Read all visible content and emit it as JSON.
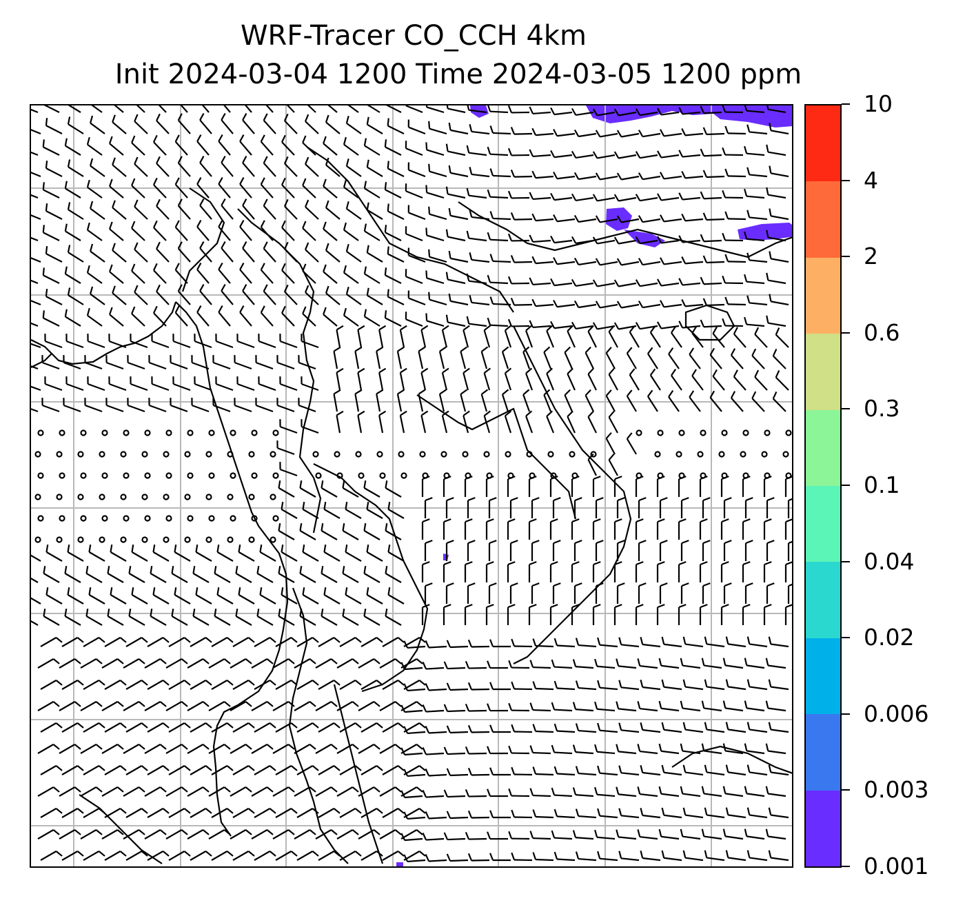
{
  "title": {
    "line1": "WRF-Tracer CO_CCH 4km",
    "line2": "Init 2024-03-04 1200 Time 2024-03-05 1200 ppm"
  },
  "colorbar": {
    "levels": [
      "0.001",
      "0.003",
      "0.006",
      "0.02",
      "0.04",
      "0.1",
      "0.3",
      "0.6",
      "2",
      "4",
      "10"
    ],
    "colors": [
      "#6a2dff",
      "#3a78f0",
      "#00b0e8",
      "#2ad8cf",
      "#5cf5b8",
      "#8cf598",
      "#cfe086",
      "#fdb064",
      "#ff6a3a",
      "#ff2a14"
    ]
  },
  "map": {
    "gridlines": "on",
    "tracer_color": "#6a2dff",
    "barb_color": "#000000",
    "grid_color": "#b8b8b8"
  }
}
